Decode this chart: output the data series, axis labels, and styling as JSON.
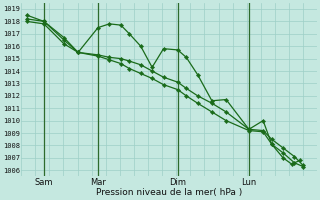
{
  "background_color": "#c5e8e0",
  "grid_color": "#9ecfc7",
  "line_color": "#1a6b1a",
  "marker_color": "#1a6b1a",
  "xlabel": "Pression niveau de la mer( hPa )",
  "ylim": [
    1005.5,
    1019.5
  ],
  "yticks": [
    1006,
    1007,
    1008,
    1009,
    1010,
    1011,
    1012,
    1013,
    1014,
    1015,
    1016,
    1017,
    1018,
    1019
  ],
  "xtick_labels": [
    "Sam",
    "Mar",
    "Dim",
    "Lun"
  ],
  "xtick_x": [
    0.08,
    0.27,
    0.55,
    0.8
  ],
  "vline_x": [
    0.08,
    0.27,
    0.55,
    0.8
  ],
  "line1_x": [
    0.02,
    0.08,
    0.15,
    0.2,
    0.27,
    0.31,
    0.35,
    0.38,
    0.42,
    0.46,
    0.5,
    0.55,
    0.58,
    0.62,
    0.67,
    0.72,
    0.8,
    0.85,
    0.88,
    0.92,
    0.95,
    0.98
  ],
  "line1_y": [
    1018.5,
    1018.0,
    1016.7,
    1015.5,
    1017.5,
    1017.8,
    1017.7,
    1017.0,
    1016.0,
    1014.3,
    1015.8,
    1015.7,
    1015.1,
    1013.7,
    1011.6,
    1011.7,
    1009.3,
    1010.0,
    1008.1,
    1007.0,
    1006.5,
    1006.8
  ],
  "line2_x": [
    0.02,
    0.08,
    0.15,
    0.2,
    0.27,
    0.31,
    0.35,
    0.38,
    0.42,
    0.46,
    0.5,
    0.55,
    0.58,
    0.62,
    0.67,
    0.72,
    0.8,
    0.85,
    0.88,
    0.92,
    0.96,
    0.99
  ],
  "line2_y": [
    1018.2,
    1018.0,
    1016.5,
    1015.5,
    1015.3,
    1015.1,
    1015.0,
    1014.8,
    1014.5,
    1014.0,
    1013.5,
    1013.1,
    1012.6,
    1012.0,
    1011.4,
    1010.7,
    1009.3,
    1009.2,
    1008.5,
    1007.8,
    1007.1,
    1006.4
  ],
  "line3_x": [
    0.02,
    0.08,
    0.15,
    0.2,
    0.27,
    0.31,
    0.35,
    0.38,
    0.42,
    0.46,
    0.5,
    0.55,
    0.58,
    0.62,
    0.67,
    0.72,
    0.8,
    0.85,
    0.88,
    0.92,
    0.96,
    0.99
  ],
  "line3_y": [
    1018.0,
    1017.8,
    1016.2,
    1015.5,
    1015.2,
    1014.9,
    1014.6,
    1014.2,
    1013.8,
    1013.4,
    1012.9,
    1012.5,
    1012.0,
    1011.4,
    1010.7,
    1010.0,
    1009.2,
    1009.1,
    1008.1,
    1007.4,
    1006.6,
    1006.3
  ]
}
